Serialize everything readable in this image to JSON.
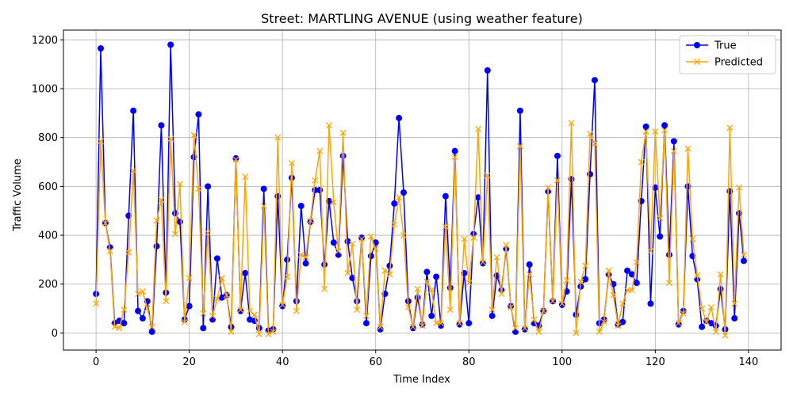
{
  "chart_data": {
    "type": "line",
    "title": "Street: MARTLING AVENUE (using weather feature)",
    "xlabel": "Time Index",
    "ylabel": "Traffic Volume",
    "xlim": [
      -7,
      147
    ],
    "ylim": [
      -70,
      1240
    ],
    "xticks": [
      0,
      20,
      40,
      60,
      80,
      100,
      120,
      140
    ],
    "yticks": [
      0,
      200,
      400,
      600,
      800,
      1000,
      1200
    ],
    "grid": true,
    "legend_position": "top-right",
    "series": [
      {
        "name": "True",
        "color": "#0000ff",
        "marker": "circle",
        "values": [
          160,
          1165,
          450,
          350,
          40,
          50,
          40,
          480,
          910,
          90,
          60,
          130,
          5,
          355,
          850,
          165,
          1180,
          490,
          455,
          55,
          110,
          720,
          895,
          20,
          600,
          55,
          305,
          145,
          155,
          25,
          715,
          90,
          245,
          55,
          50,
          20,
          590,
          10,
          15,
          560,
          110,
          300,
          635,
          130,
          520,
          285,
          455,
          585,
          585,
          280,
          540,
          370,
          320,
          725,
          375,
          225,
          130,
          390,
          40,
          315,
          370,
          15,
          160,
          275,
          530,
          880,
          575,
          130,
          20,
          145,
          35,
          250,
          70,
          230,
          30,
          560,
          185,
          745,
          35,
          245,
          40,
          405,
          555,
          285,
          1075,
          70,
          235,
          175,
          345,
          110,
          5,
          910,
          15,
          280,
          40,
          30,
          90,
          580,
          130,
          725,
          115,
          170,
          630,
          75,
          190,
          220,
          650,
          1035,
          40,
          55,
          240,
          200,
          35,
          45,
          255,
          240,
          205,
          540,
          845,
          120,
          595,
          395,
          850,
          320,
          785,
          35,
          90,
          600,
          315,
          220,
          25,
          50,
          40,
          30,
          180,
          15,
          580,
          60,
          490,
          295
        ]
      },
      {
        "name": "Predicted",
        "color": "#ffa500",
        "marker": "x",
        "values": [
          120,
          785,
          450,
          335,
          25,
          20,
          95,
          330,
          665,
          160,
          170,
          100,
          25,
          460,
          545,
          130,
          795,
          405,
          610,
          45,
          225,
          810,
          590,
          80,
          410,
          70,
          140,
          225,
          155,
          5,
          710,
          95,
          640,
          90,
          75,
          -5,
          520,
          -5,
          5,
          800,
          115,
          230,
          695,
          90,
          320,
          310,
          460,
          625,
          745,
          180,
          850,
          535,
          335,
          820,
          245,
          365,
          95,
          385,
          70,
          395,
          345,
          25,
          255,
          240,
          445,
          555,
          400,
          105,
          25,
          180,
          30,
          210,
          175,
          40,
          40,
          435,
          95,
          720,
          40,
          385,
          205,
          390,
          835,
          290,
          645,
          95,
          310,
          160,
          360,
          105,
          20,
          765,
          20,
          240,
          55,
          5,
          90,
          595,
          130,
          625,
          120,
          215,
          860,
          0,
          210,
          275,
          815,
          775,
          5,
          45,
          255,
          155,
          30,
          120,
          175,
          175,
          290,
          700,
          825,
          335,
          825,
          470,
          830,
          205,
          745,
          40,
          80,
          755,
          385,
          235,
          100,
          45,
          105,
          5,
          240,
          -10,
          840,
          120,
          595,
          320
        ]
      }
    ]
  }
}
